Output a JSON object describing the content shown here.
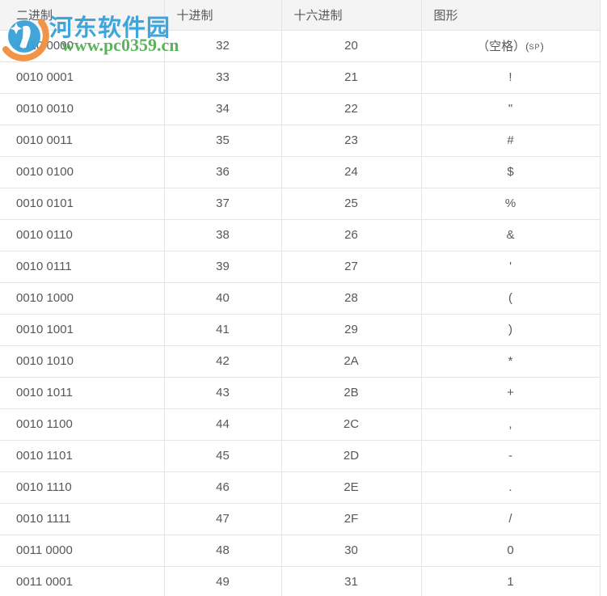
{
  "watermark": {
    "site_name": "河东软件园",
    "site_url": "www.pc0359.cn",
    "colors": {
      "blue": "#2f9fd9",
      "green": "#45a945",
      "orange": "#f0903f",
      "logo_blue": "#38a1d9"
    }
  },
  "table": {
    "columns": [
      {
        "key": "bin",
        "label": "二进制"
      },
      {
        "key": "dec",
        "label": "十进制"
      },
      {
        "key": "hex",
        "label": "十六进制"
      },
      {
        "key": "graphic",
        "label": "图形"
      }
    ],
    "rows": [
      {
        "bin": "0010 0000",
        "dec": "32",
        "hex": "20",
        "graphic": "（空格）",
        "graphic_note": "SP"
      },
      {
        "bin": "0010 0001",
        "dec": "33",
        "hex": "21",
        "graphic": "!"
      },
      {
        "bin": "0010 0010",
        "dec": "34",
        "hex": "22",
        "graphic": "\""
      },
      {
        "bin": "0010 0011",
        "dec": "35",
        "hex": "23",
        "graphic": "#"
      },
      {
        "bin": "0010 0100",
        "dec": "36",
        "hex": "24",
        "graphic": "$"
      },
      {
        "bin": "0010 0101",
        "dec": "37",
        "hex": "25",
        "graphic": "%"
      },
      {
        "bin": "0010 0110",
        "dec": "38",
        "hex": "26",
        "graphic": "&"
      },
      {
        "bin": "0010 0111",
        "dec": "39",
        "hex": "27",
        "graphic": "'"
      },
      {
        "bin": "0010 1000",
        "dec": "40",
        "hex": "28",
        "graphic": "("
      },
      {
        "bin": "0010 1001",
        "dec": "41",
        "hex": "29",
        "graphic": ")"
      },
      {
        "bin": "0010 1010",
        "dec": "42",
        "hex": "2A",
        "graphic": "*"
      },
      {
        "bin": "0010 1011",
        "dec": "43",
        "hex": "2B",
        "graphic": "+"
      },
      {
        "bin": "0010 1100",
        "dec": "44",
        "hex": "2C",
        "graphic": ","
      },
      {
        "bin": "0010 1101",
        "dec": "45",
        "hex": "2D",
        "graphic": "-"
      },
      {
        "bin": "0010 1110",
        "dec": "46",
        "hex": "2E",
        "graphic": "."
      },
      {
        "bin": "0010 1111",
        "dec": "47",
        "hex": "2F",
        "graphic": "/"
      },
      {
        "bin": "0011 0000",
        "dec": "48",
        "hex": "30",
        "graphic": "0"
      },
      {
        "bin": "0011 0001",
        "dec": "49",
        "hex": "31",
        "graphic": "1"
      }
    ]
  }
}
